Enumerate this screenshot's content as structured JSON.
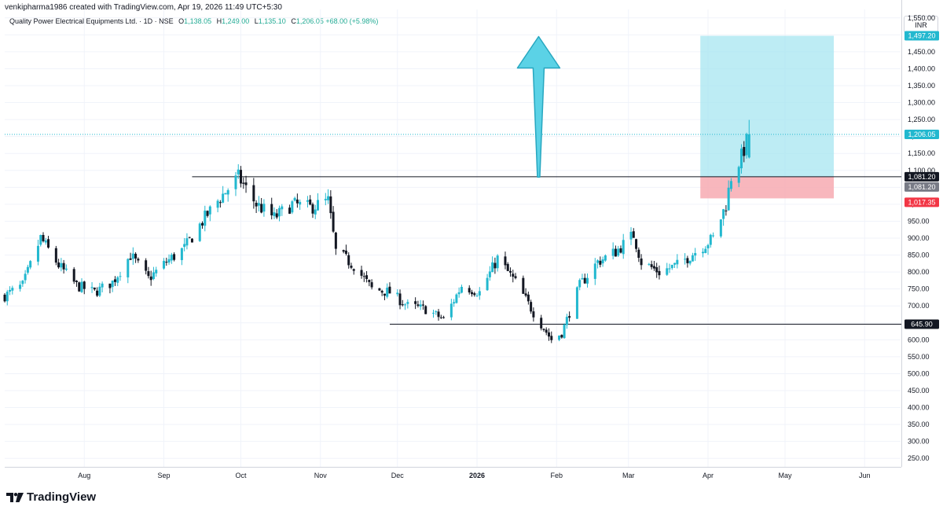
{
  "header": {
    "creator": "venkipharma1986 created with TradingView.com, Apr 19, 2026 11:49 UTC+5:30"
  },
  "legend": {
    "symbol": "Quality Power Electrical Equipments Ltd. · 1D · NSE",
    "open_key": "O",
    "open": "1,138.05",
    "high_key": "H",
    "high": "1,249.00",
    "low_key": "L",
    "low": "1,135.10",
    "close_key": "C",
    "close": "1,206.05",
    "change": "+68.00 (+5.98%)"
  },
  "currency": "INR",
  "brand": "TradingView",
  "colors": {
    "up": "#22b8cf",
    "down": "#131722",
    "target_zone": "#a7e6f0",
    "stop_zone": "#f7aab2",
    "arrow": "#5bd2e6",
    "tag_last": "#22b8cf",
    "tag_level": "#131722",
    "tag_entry": "#787b86",
    "tag_stop": "#f23645"
  },
  "chart_data": {
    "type": "candlestick",
    "x_axis": {
      "labels": [
        "Aug",
        "Sep",
        "Oct",
        "Nov",
        "Dec",
        "2026",
        "Feb",
        "Mar",
        "Apr",
        "May",
        "Jun"
      ],
      "dates": [
        "2025-08-01",
        "2025-09-01",
        "2025-10-01",
        "2025-11-01",
        "2025-12-01",
        "2026-01-01",
        "2026-02-01",
        "2026-03-01",
        "2026-04-01",
        "2026-05-01",
        "2026-06-01"
      ],
      "range": [
        "2025-07-01",
        "2026-06-15"
      ]
    },
    "y_axis": {
      "range": [
        225,
        1575
      ],
      "ticks": [
        250,
        300,
        350,
        400,
        450,
        500,
        550,
        600,
        650,
        700,
        750,
        800,
        850,
        900,
        950,
        1000,
        1050,
        1100,
        1150,
        1200,
        1250,
        1300,
        1350,
        1400,
        1450,
        1500,
        1550
      ],
      "tick_labels": [
        "250.00",
        "300.00",
        "350.00",
        "400.00",
        "450.00",
        "500.00",
        "550.00",
        "600.00",
        "650.00",
        "700.00",
        "750.00",
        "800.00",
        "850.00",
        "900.00",
        "950.00",
        "1,000.00",
        "1,050.00",
        "1,100.00",
        "1,150.00",
        "1,200.00",
        "1,250.00",
        "1,300.00",
        "1,350.00",
        "1,400.00",
        "1,450.00",
        "1,500.00",
        "1,550.00"
      ]
    },
    "anchors": [
      [
        "2025-07-01",
        730
      ],
      [
        "2025-07-08",
        760
      ],
      [
        "2025-07-15",
        900
      ],
      [
        "2025-07-22",
        820
      ],
      [
        "2025-07-29",
        760
      ],
      [
        "2025-08-05",
        740
      ],
      [
        "2025-08-12",
        770
      ],
      [
        "2025-08-19",
        850
      ],
      [
        "2025-08-26",
        780
      ],
      [
        "2025-09-02",
        830
      ],
      [
        "2025-09-09",
        870
      ],
      [
        "2025-09-16",
        950
      ],
      [
        "2025-09-23",
        1020
      ],
      [
        "2025-09-30",
        1080
      ],
      [
        "2025-10-07",
        1000
      ],
      [
        "2025-10-14",
        960
      ],
      [
        "2025-10-21",
        1000
      ],
      [
        "2025-10-28",
        990
      ],
      [
        "2025-11-04",
        1010
      ],
      [
        "2025-11-07",
        860
      ],
      [
        "2025-11-14",
        820
      ],
      [
        "2025-11-21",
        750
      ],
      [
        "2025-11-28",
        740
      ],
      [
        "2025-12-05",
        700
      ],
      [
        "2025-12-12",
        690
      ],
      [
        "2025-12-19",
        660
      ],
      [
        "2025-12-26",
        760
      ],
      [
        "2026-01-02",
        740
      ],
      [
        "2026-01-09",
        840
      ],
      [
        "2026-01-16",
        770
      ],
      [
        "2026-01-23",
        680
      ],
      [
        "2026-01-30",
        600
      ],
      [
        "2026-02-03",
        620
      ],
      [
        "2026-02-10",
        760
      ],
      [
        "2026-02-17",
        830
      ],
      [
        "2026-02-24",
        860
      ],
      [
        "2026-03-03",
        910
      ],
      [
        "2026-03-06",
        830
      ],
      [
        "2026-03-13",
        800
      ],
      [
        "2026-03-20",
        820
      ],
      [
        "2026-03-27",
        860
      ],
      [
        "2026-04-03",
        900
      ],
      [
        "2026-04-08",
        1000
      ],
      [
        "2026-04-10",
        1081
      ],
      [
        "2026-04-14",
        1140
      ],
      [
        "2026-04-17",
        1206.05
      ]
    ],
    "last_candle": {
      "date": "2026-04-17",
      "open": 1138.05,
      "high": 1249.0,
      "low": 1135.1,
      "close": 1206.05
    },
    "horizontal_levels": [
      {
        "value": 1081.2,
        "from": "2025-09-12",
        "label": "1,081.20"
      },
      {
        "value": 645.9,
        "from": "2025-11-28",
        "label": "645.90"
      }
    ],
    "last_price_line": {
      "value": 1206.05,
      "label": "1,206.05"
    },
    "long_position": {
      "from": "2026-03-29",
      "to": "2026-05-20",
      "entry": 1081.2,
      "target": 1497.2,
      "stop": 1017.35,
      "entry_label": "1,081.20",
      "target_label": "1,497.20",
      "stop_label": "1,017.35"
    },
    "up_arrow": {
      "date": "2026-01-25",
      "from": 1080,
      "to": 1495
    }
  }
}
